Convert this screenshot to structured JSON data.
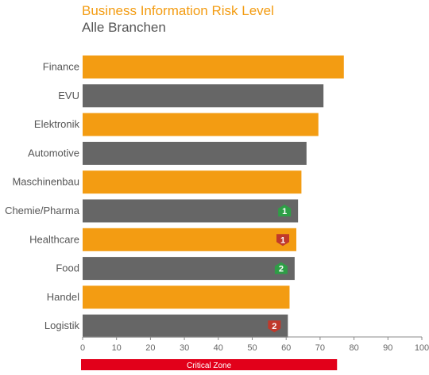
{
  "chart_data": {
    "type": "bar",
    "orientation": "horizontal",
    "title": "Business Information Risk Level",
    "subtitle": "Alle Branchen",
    "categories": [
      "Finance",
      "EVU",
      "Elektronik",
      "Automotive",
      "Maschinenbau",
      "Chemie/Pharma",
      "Healthcare",
      "Food",
      "Handel",
      "Logistik"
    ],
    "values": [
      77,
      71,
      69.5,
      66,
      64.5,
      63.5,
      63,
      62.5,
      61,
      60.5
    ],
    "bar_colors": [
      "#f39c12",
      "#666666",
      "#f39c12",
      "#666666",
      "#f39c12",
      "#666666",
      "#f39c12",
      "#666666",
      "#f39c12",
      "#666666"
    ],
    "xlim": [
      0,
      100
    ],
    "xticks": [
      0,
      10,
      20,
      30,
      40,
      50,
      60,
      70,
      80,
      90,
      100
    ],
    "grid": false,
    "badges": [
      {
        "category": "Chemie/Pharma",
        "label": "1",
        "color": "#2e9e46",
        "shape": "hexagon-up"
      },
      {
        "category": "Healthcare",
        "label": "1",
        "color": "#c0392b",
        "shape": "shield-down"
      },
      {
        "category": "Food",
        "label": "2",
        "color": "#2e9e46",
        "shape": "hexagon-up"
      },
      {
        "category": "Logistik",
        "label": "2",
        "color": "#c0392b",
        "shape": "shield-down"
      }
    ],
    "zone": {
      "label": "Critical Zone",
      "from": 0,
      "to": 75,
      "color": "#e2001a"
    }
  }
}
